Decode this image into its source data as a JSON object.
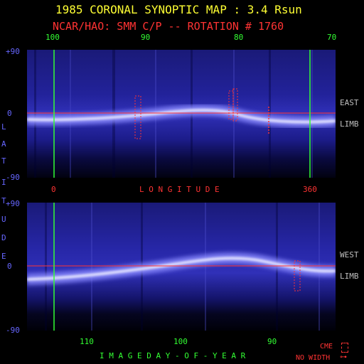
{
  "header": {
    "title": "1985 CORONAL SYNOPTIC MAP : 3.4 Rsun",
    "subtitle": "NCAR/HAO: SMM C/P -- ROTATION # 1760"
  },
  "top_axis": {
    "ticks": [
      "100",
      "90",
      "80",
      "70"
    ]
  },
  "latitude": {
    "title_letters": [
      "L",
      "A",
      "T",
      "I",
      "T",
      "U",
      "D",
      "E"
    ],
    "top_panel": [
      "+90",
      "0",
      "-90"
    ],
    "bottom_panel": [
      "+90",
      "0",
      "-90"
    ]
  },
  "longitude": {
    "label": "L O N G I T U D E",
    "start": "0",
    "end": "360"
  },
  "limbs": {
    "east": [
      "EAST",
      "LIMB"
    ],
    "west": [
      "WEST",
      "LIMB"
    ]
  },
  "bottom_axis": {
    "ticks": [
      "110",
      "100",
      "90"
    ],
    "label": "I M A G E   D A Y - O F - Y E A R"
  },
  "legend": {
    "cme": "CME",
    "no_width": "NO WIDTH"
  },
  "colors": {
    "title": "#ffff33",
    "subtitle": "#ff3333",
    "day_ticks": "#33ff33",
    "latitude_labels": "#6666ff",
    "limb_labels": "#bfbfbf",
    "equator_line": "#ff3333",
    "meridian_lines": "#33ff33"
  }
}
